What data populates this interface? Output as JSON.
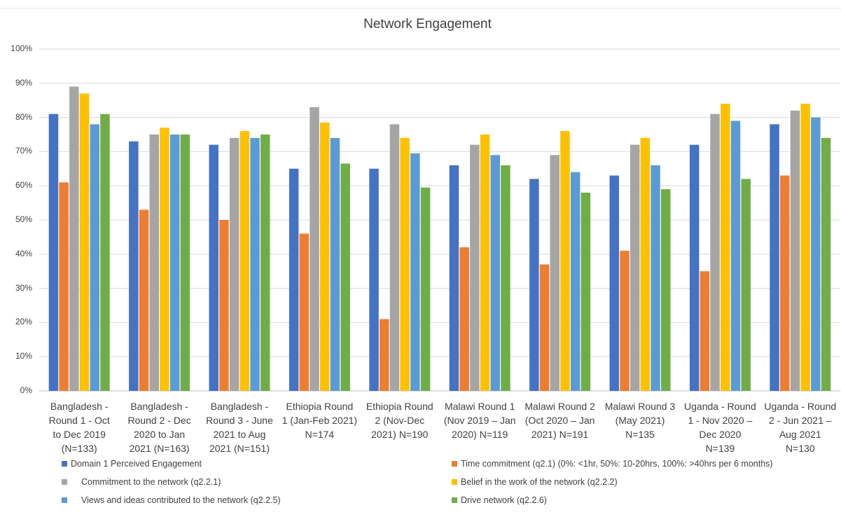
{
  "chart_data": {
    "type": "bar",
    "title": "Network Engagement",
    "xlabel": "",
    "ylabel": "",
    "ylim": [
      0,
      100
    ],
    "y_ticks": [
      "0%",
      "10%",
      "20%",
      "30%",
      "40%",
      "50%",
      "60%",
      "70%",
      "80%",
      "90%",
      "100%"
    ],
    "grid": true,
    "legend_position": "bottom",
    "categories": [
      "Bangladesh - Round 1 - Oct to Dec 2019 (N=133)",
      "Bangladesh - Round 2 - Dec 2020 to Jan 2021 (N=163)",
      "Bangladesh - Round 3 - June 2021 to Aug 2021 (N=151)",
      "Ethiopia Round 1 (Jan-Feb 2021) N=174",
      "Ethiopia Round 2 (Nov-Dec 2021) N=190",
      "Malawi Round 1 (Nov 2019 – Jan 2020) N=119",
      "Malawi Round 2 (Oct 2020 – Jan 2021) N=191",
      "Malawi Round 3 (May 2021) N=135",
      "Uganda - Round 1 - Nov 2020 – Dec 2020 N=139",
      "Uganda - Round 2 - Jun 2021 – Aug 2021 N=130"
    ],
    "category_lines": [
      [
        "Bangladesh -",
        "Round 1  - Oct",
        "to Dec 2019",
        "(N=133)"
      ],
      [
        "Bangladesh -",
        "Round 2 - Dec",
        "2020 to Jan",
        "2021 (N=163)"
      ],
      [
        "Bangladesh -",
        "Round 3 - June",
        "2021 to Aug",
        "2021 (N=151)"
      ],
      [
        "Ethiopia Round",
        "1 (Jan-Feb 2021)",
        "N=174"
      ],
      [
        "Ethiopia Round",
        "2 (Nov-Dec",
        "2021) N=190"
      ],
      [
        "Malawi Round 1",
        "(Nov 2019 – Jan",
        "2020) N=119"
      ],
      [
        "Malawi Round 2",
        "(Oct 2020 – Jan",
        "2021) N=191"
      ],
      [
        "Malawi Round 3",
        "(May 2021)",
        "N=135"
      ],
      [
        "Uganda - Round",
        "1 - Nov 2020 –",
        "Dec 2020",
        "N=139"
      ],
      [
        "Uganda - Round",
        "2 - Jun 2021 –",
        "Aug 2021",
        "N=130"
      ]
    ],
    "series": [
      {
        "name": "Domain 1 Perceived Engagement",
        "color": "#4472C4",
        "values": [
          81,
          73,
          72,
          65,
          65,
          66,
          62,
          63,
          72,
          78
        ]
      },
      {
        "name": "Time commitment (q2.1) (0%: <1hr, 50%: 10-20hrs, 100%: >40hrs per 6 months)",
        "color": "#ED7D31",
        "values": [
          61,
          53,
          50,
          46,
          21,
          42,
          37,
          41,
          35,
          63
        ]
      },
      {
        "name": "Commitment to the network (q2.2.1)",
        "color": "#A5A5A5",
        "values": [
          89,
          75,
          74,
          83,
          78,
          72,
          69,
          72,
          81,
          82
        ]
      },
      {
        "name": "Belief in the work of the network (q2.2.2)",
        "color": "#FFC000",
        "values": [
          87,
          77,
          76,
          78.5,
          74,
          75,
          76,
          74,
          84,
          84
        ]
      },
      {
        "name": "Views and ideas contributed to the network (q2.2.5)",
        "color": "#5B9BD5",
        "values": [
          78,
          75,
          74,
          74,
          69.5,
          69,
          64,
          66,
          79,
          80
        ]
      },
      {
        "name": "Drive network (q2.2.6)",
        "color": "#70AD47",
        "values": [
          81,
          75,
          75,
          66.5,
          59.5,
          66,
          58,
          59,
          62,
          74
        ]
      }
    ]
  }
}
